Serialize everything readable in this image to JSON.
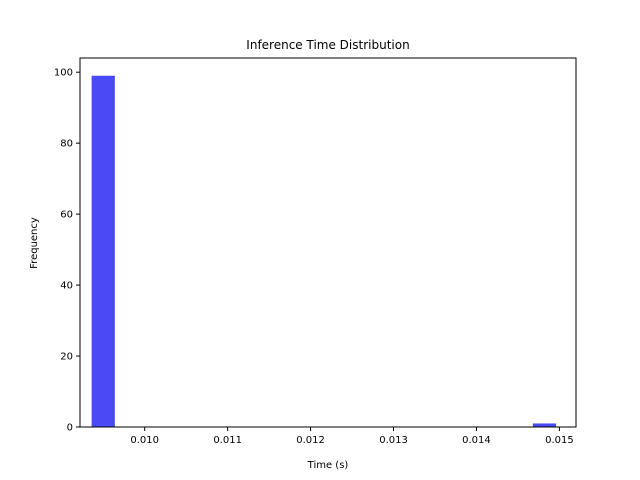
{
  "chart_data": {
    "type": "bar",
    "title": "Inference Time Distribution",
    "xlabel": "Time (s)",
    "ylabel": "Frequency",
    "bins": [
      {
        "x0": 0.00936,
        "x1": 0.00964,
        "count": 99
      },
      {
        "x0": 0.01468,
        "x1": 0.01496,
        "count": 1
      }
    ],
    "xlim": [
      0.00922,
      0.0152
    ],
    "ylim": [
      0,
      104
    ],
    "x_ticks": [
      0.01,
      0.011,
      0.012,
      0.013,
      0.014,
      0.015
    ],
    "x_tick_labels": [
      "0.010",
      "0.011",
      "0.012",
      "0.013",
      "0.014",
      "0.015"
    ],
    "y_ticks": [
      0,
      20,
      40,
      60,
      80,
      100
    ],
    "y_tick_labels": [
      "0",
      "20",
      "40",
      "60",
      "80",
      "100"
    ],
    "bar_color": "#4a4af5",
    "grid": false,
    "legend": "none"
  }
}
